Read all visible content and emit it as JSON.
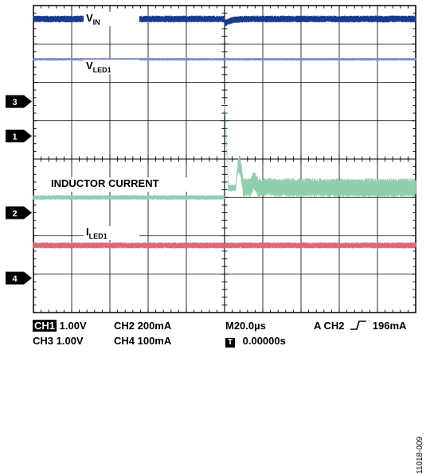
{
  "chart_data": {
    "type": "line",
    "instrument": "oscilloscope",
    "grid": true,
    "divisions": {
      "x": 10,
      "y": 8
    },
    "series": [
      {
        "name": "V_IN",
        "label_main": "V",
        "label_sub": "IN",
        "channel_marker": "",
        "color": "#1a3a8c",
        "level_div": 7.65,
        "noise_div": 0.18,
        "disturbance_at_div": 5.0
      },
      {
        "name": "V_LED1",
        "label_main": "V",
        "label_sub": "LED1",
        "channel_marker": "",
        "color": "#7b8fc4",
        "level_div": 6.6,
        "noise_div": 0.07
      },
      {
        "name": "INDUCTOR CURRENT",
        "label_main": "INDUCTOR CURRENT",
        "label_sub": "",
        "channel_marker": "2",
        "color": "#8fcfad",
        "level_div": 3.0,
        "level_after_div": 3.25,
        "noise_div": 0.12,
        "noise_after_div": 0.5,
        "step_at_div": 5.0,
        "peak_div": 5.35
      },
      {
        "name": "I_LED1",
        "label_main": "I",
        "label_sub": "LED1",
        "channel_marker": "4",
        "color": "#e26679",
        "level_div": 1.75,
        "noise_div": 0.16
      }
    ],
    "ground_markers": [
      {
        "label": "3",
        "level_div": 5.5
      },
      {
        "label": "1",
        "level_div": 4.6
      },
      {
        "label": "2",
        "level_div": 2.6
      },
      {
        "label": "4",
        "level_div": 0.9
      }
    ]
  },
  "readout": {
    "ch1_tag": "CH1",
    "ch1_value": "1.00V",
    "ch2_text": "CH2  200mA",
    "ch3_text": "CH3  1.00V",
    "ch4_text": "CH4  100mA",
    "timebase": "M20.0µs",
    "trigger_text_a": "A  CH2",
    "trigger_slope_icon": "rising-edge-icon",
    "trigger_text_b": "196mA",
    "t_tag": "T",
    "t_offset": "0.00000s"
  },
  "figure_id": "11018-009"
}
